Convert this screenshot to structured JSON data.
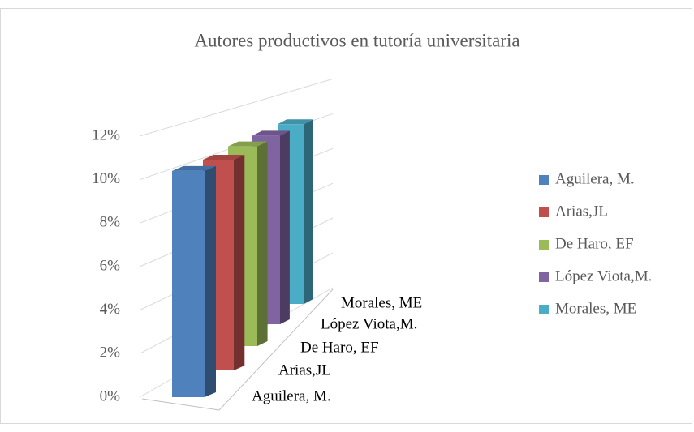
{
  "chart_data": {
    "type": "bar3d",
    "title": "Autores productivos en tutoría universitaria",
    "categories": [
      "Aguilera, M.",
      "Arias,JL",
      "De Haro, EF",
      "López Viota,M.",
      "Morales, ME"
    ],
    "values": [
      10.4,
      10.2,
      10.2,
      10.2,
      10.2
    ],
    "colors": [
      "#4f81bd",
      "#c0504d",
      "#9bbb59",
      "#8064a2",
      "#4bacc6"
    ],
    "ylim": [
      0,
      12
    ],
    "yticks": [
      {
        "value": 0,
        "label": "0%"
      },
      {
        "value": 2,
        "label": "2%"
      },
      {
        "value": 4,
        "label": "4%"
      },
      {
        "value": 6,
        "label": "6%"
      },
      {
        "value": 8,
        "label": "8%"
      },
      {
        "value": 10,
        "label": "10%"
      },
      {
        "value": 12,
        "label": "12%"
      }
    ],
    "grid": true,
    "legend": "right"
  }
}
